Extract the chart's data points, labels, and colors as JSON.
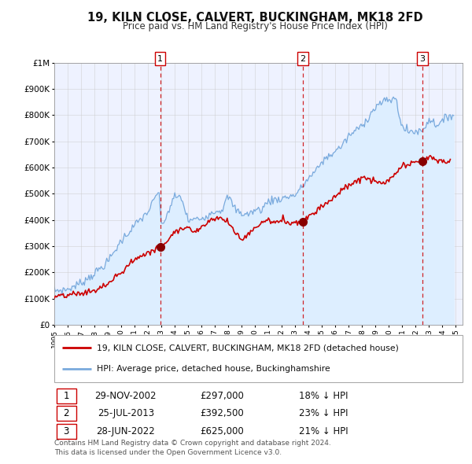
{
  "title": "19, KILN CLOSE, CALVERT, BUCKINGHAM, MK18 2FD",
  "subtitle": "Price paid vs. HM Land Registry's House Price Index (HPI)",
  "legend_label_property": "19, KILN CLOSE, CALVERT, BUCKINGHAM, MK18 2FD (detached house)",
  "legend_label_hpi": "HPI: Average price, detached house, Buckinghamshire",
  "property_color": "#cc0000",
  "hpi_color": "#7aaadd",
  "hpi_fill_color": "#ddeeff",
  "sale_marker_color": "#880000",
  "dashed_line_color": "#cc0000",
  "background_color": "#ffffff",
  "plot_bg_color": "#eef2ff",
  "grid_color": "#cccccc",
  "sales": [
    {
      "date_num": 2002.91,
      "price": 297000,
      "label": "1",
      "date_str": "29-NOV-2002",
      "pct": "18%"
    },
    {
      "date_num": 2013.56,
      "price": 392500,
      "label": "2",
      "date_str": "25-JUL-2013",
      "pct": "23%"
    },
    {
      "date_num": 2022.49,
      "price": 625000,
      "label": "3",
      "date_str": "28-JUN-2022",
      "pct": "21%"
    }
  ],
  "ylim": [
    0,
    1000000
  ],
  "xlim": [
    1995,
    2025.5
  ],
  "yticks": [
    0,
    100000,
    200000,
    300000,
    400000,
    500000,
    600000,
    700000,
    800000,
    900000,
    1000000
  ],
  "ytick_labels": [
    "£0",
    "£100K",
    "£200K",
    "£300K",
    "£400K",
    "£500K",
    "£600K",
    "£700K",
    "£800K",
    "£900K",
    "£1M"
  ],
  "xticks": [
    1995,
    1996,
    1997,
    1998,
    1999,
    2000,
    2001,
    2002,
    2003,
    2004,
    2005,
    2006,
    2007,
    2008,
    2009,
    2010,
    2011,
    2012,
    2013,
    2014,
    2015,
    2016,
    2017,
    2018,
    2019,
    2020,
    2021,
    2022,
    2023,
    2024,
    2025
  ],
  "footer": "Contains HM Land Registry data © Crown copyright and database right 2024.\nThis data is licensed under the Open Government Licence v3.0."
}
